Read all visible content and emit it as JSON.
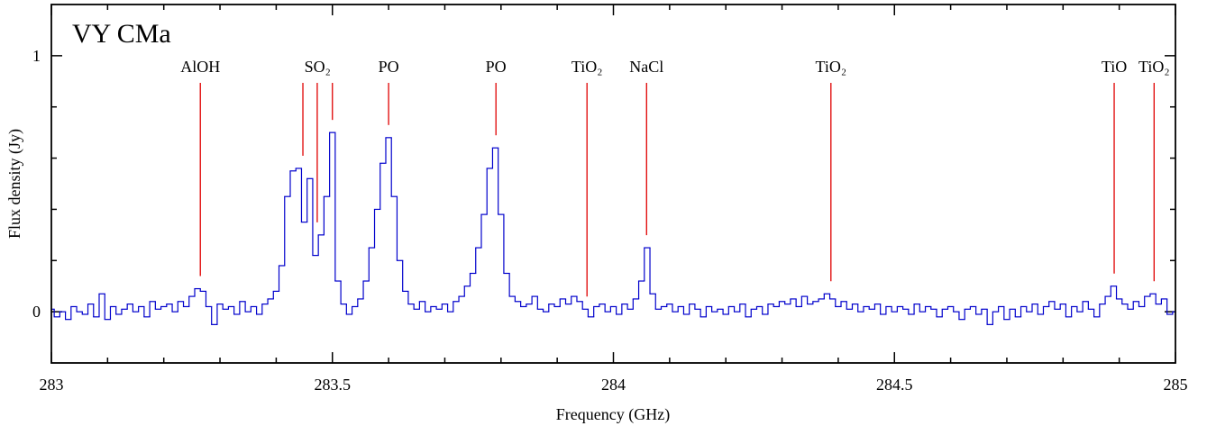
{
  "chart_data": {
    "type": "step",
    "title": "VY CMa",
    "x_label": "Frequency (GHz)",
    "y_label": "Flux density (Jy)",
    "xlim": [
      283,
      285
    ],
    "ylim": [
      -0.2,
      1.2
    ],
    "xticks": [
      283,
      283.5,
      284,
      284.5,
      285
    ],
    "yticks": [
      0,
      1
    ],
    "xminorticks": [
      283.1,
      283.2,
      283.3,
      283.4,
      283.6,
      283.7,
      283.8,
      283.9,
      284.1,
      284.2,
      284.3,
      284.4,
      284.6,
      284.7,
      284.8,
      284.9
    ],
    "yminorticks": [
      0.2,
      0.4,
      0.6,
      0.8
    ],
    "color": "#0000cc",
    "annotation_color": "#e00000",
    "annotations": [
      {
        "text": "AlOH",
        "x": [
          283.265
        ]
      },
      {
        "text": "SO₂",
        "x": [
          283.4475,
          283.473,
          283.5
        ]
      },
      {
        "text": "PO",
        "x": [
          283.6
        ]
      },
      {
        "text": "PO",
        "x": [
          283.791
        ]
      },
      {
        "text": "TiO₂",
        "x": [
          283.953
        ]
      },
      {
        "text": "NaCl",
        "x": [
          284.059
        ]
      },
      {
        "text": "TiO₂",
        "x": [
          284.387
        ]
      },
      {
        "text": "TiO",
        "x": [
          284.891
        ]
      },
      {
        "text": "TiO₂",
        "x": [
          284.962
        ]
      }
    ],
    "x": [
      283.0,
      283.01,
      283.02,
      283.03,
      283.04,
      283.05,
      283.06,
      283.07,
      283.08,
      283.09,
      283.1,
      283.11,
      283.12,
      283.13,
      283.14,
      283.15,
      283.16,
      283.17,
      283.18,
      283.19,
      283.2,
      283.21,
      283.22,
      283.23,
      283.24,
      283.25,
      283.26,
      283.27,
      283.28,
      283.29,
      283.3,
      283.31,
      283.32,
      283.33,
      283.34,
      283.35,
      283.36,
      283.37,
      283.38,
      283.39,
      283.4,
      283.41,
      283.42,
      283.43,
      283.44,
      283.45,
      283.46,
      283.47,
      283.48,
      283.49,
      283.5,
      283.51,
      283.52,
      283.53,
      283.54,
      283.55,
      283.56,
      283.57,
      283.58,
      283.59,
      283.6,
      283.61,
      283.62,
      283.63,
      283.64,
      283.65,
      283.66,
      283.67,
      283.68,
      283.69,
      283.7,
      283.71,
      283.72,
      283.73,
      283.74,
      283.75,
      283.76,
      283.77,
      283.78,
      283.79,
      283.8,
      283.81,
      283.82,
      283.83,
      283.84,
      283.85,
      283.86,
      283.87,
      283.88,
      283.89,
      283.9,
      283.91,
      283.92,
      283.93,
      283.94,
      283.95,
      283.96,
      283.97,
      283.98,
      283.99,
      284.0,
      284.01,
      284.02,
      284.03,
      284.04,
      284.05,
      284.06,
      284.07,
      284.08,
      284.09,
      284.1,
      284.11,
      284.12,
      284.13,
      284.14,
      284.15,
      284.16,
      284.17,
      284.18,
      284.19,
      284.2,
      284.21,
      284.22,
      284.23,
      284.24,
      284.25,
      284.26,
      284.27,
      284.28,
      284.29,
      284.3,
      284.31,
      284.32,
      284.33,
      284.34,
      284.35,
      284.36,
      284.37,
      284.38,
      284.39,
      284.4,
      284.41,
      284.42,
      284.43,
      284.44,
      284.45,
      284.46,
      284.47,
      284.48,
      284.49,
      284.5,
      284.51,
      284.52,
      284.53,
      284.54,
      284.55,
      284.56,
      284.57,
      284.58,
      284.59,
      284.6,
      284.61,
      284.62,
      284.63,
      284.64,
      284.65,
      284.66,
      284.67,
      284.68,
      284.69,
      284.7,
      284.71,
      284.72,
      284.73,
      284.74,
      284.75,
      284.76,
      284.77,
      284.78,
      284.79,
      284.8,
      284.81,
      284.82,
      284.83,
      284.84,
      284.85,
      284.86,
      284.87,
      284.88,
      284.89,
      284.9,
      284.91,
      284.92,
      284.93,
      284.94,
      284.95,
      284.96,
      284.97,
      284.98,
      284.99,
      285.0
    ],
    "values": [
      0.01,
      -0.02,
      0.0,
      -0.03,
      0.02,
      0.0,
      -0.01,
      0.03,
      -0.02,
      0.07,
      -0.03,
      0.02,
      -0.01,
      0.01,
      0.03,
      0.0,
      0.02,
      -0.02,
      0.04,
      0.01,
      0.02,
      0.03,
      0.0,
      0.04,
      0.02,
      0.06,
      0.09,
      0.08,
      0.02,
      -0.05,
      0.03,
      0.01,
      0.02,
      -0.01,
      0.04,
      0.0,
      0.02,
      -0.01,
      0.03,
      0.05,
      0.08,
      0.18,
      0.45,
      0.55,
      0.56,
      0.35,
      0.52,
      0.22,
      0.3,
      0.45,
      0.7,
      0.12,
      0.03,
      -0.01,
      0.02,
      0.05,
      0.12,
      0.25,
      0.4,
      0.58,
      0.68,
      0.45,
      0.2,
      0.08,
      0.03,
      0.01,
      0.04,
      0.0,
      0.02,
      0.01,
      0.03,
      0.0,
      0.04,
      0.06,
      0.1,
      0.15,
      0.25,
      0.38,
      0.56,
      0.64,
      0.38,
      0.15,
      0.06,
      0.04,
      0.02,
      0.03,
      0.06,
      0.01,
      0.0,
      0.03,
      0.02,
      0.05,
      0.03,
      0.06,
      0.04,
      0.01,
      -0.02,
      0.02,
      0.03,
      0.0,
      0.02,
      -0.01,
      0.03,
      0.01,
      0.05,
      0.12,
      0.25,
      0.07,
      0.01,
      0.02,
      0.03,
      0.0,
      0.02,
      -0.01,
      0.03,
      0.01,
      -0.02,
      0.02,
      0.0,
      0.01,
      -0.01,
      0.02,
      0.0,
      0.03,
      -0.02,
      0.01,
      0.02,
      -0.01,
      0.03,
      0.02,
      0.04,
      0.03,
      0.05,
      0.02,
      0.06,
      0.03,
      0.04,
      0.05,
      0.07,
      0.05,
      0.02,
      0.04,
      0.01,
      0.03,
      0.0,
      0.02,
      0.01,
      0.03,
      -0.01,
      0.02,
      0.0,
      0.02,
      0.01,
      -0.01,
      0.03,
      0.0,
      0.02,
      0.01,
      -0.02,
      0.01,
      0.02,
      0.0,
      -0.03,
      0.01,
      0.02,
      -0.01,
      0.01,
      -0.05,
      0.0,
      0.02,
      -0.03,
      0.01,
      -0.02,
      0.02,
      0.0,
      0.03,
      -0.01,
      0.02,
      0.04,
      0.01,
      0.03,
      -0.02,
      0.02,
      0.0,
      0.04,
      0.01,
      -0.02,
      0.03,
      0.06,
      0.1,
      0.05,
      0.03,
      0.01,
      0.04,
      0.02,
      0.06,
      0.07,
      0.03,
      0.05,
      -0.01,
      0.0
    ]
  }
}
